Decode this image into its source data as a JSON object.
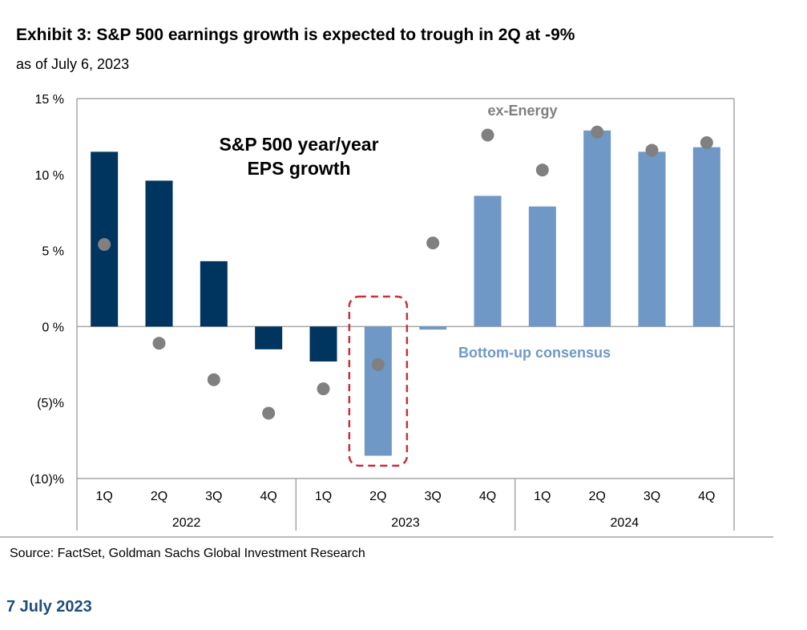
{
  "header": {
    "title": "Exhibit 3: S&P 500 earnings growth is expected to trough in 2Q at -9%",
    "subtitle": "as of July 6, 2023"
  },
  "footer": {
    "source": "Source: FactSet, Goldman Sachs Global Investment Research",
    "date": "7 July 2023"
  },
  "chart_data": {
    "type": "bar",
    "title": "S&P 500 year/year EPS growth",
    "title_lines": [
      "S&P 500 year/year",
      "EPS growth"
    ],
    "ylim": [
      -10,
      15
    ],
    "yticks": [
      15,
      10,
      5,
      0,
      -5,
      -10
    ],
    "ytick_labels": [
      "15 %",
      "10 %",
      "5 %",
      "0 %",
      "(5)%",
      "(10)%"
    ],
    "categories": [
      "1Q",
      "2Q",
      "3Q",
      "4Q",
      "1Q",
      "2Q",
      "3Q",
      "4Q",
      "1Q",
      "2Q",
      "3Q",
      "4Q"
    ],
    "years": [
      "2022",
      "2023",
      "2024"
    ],
    "series": [
      {
        "name": "Bottom-up consensus",
        "type": "bar",
        "values": [
          11.5,
          9.6,
          4.3,
          -1.5,
          -2.3,
          -8.5,
          -0.2,
          8.6,
          7.9,
          12.9,
          11.5,
          11.8
        ],
        "actual_count": 5
      },
      {
        "name": "ex-Energy",
        "type": "scatter",
        "values": [
          5.4,
          -1.1,
          -3.5,
          -5.7,
          -4.1,
          -2.5,
          5.5,
          12.6,
          10.3,
          12.8,
          11.6,
          12.1
        ]
      }
    ],
    "highlight_index": 5,
    "colors": {
      "actual": "#003560",
      "estimate": "#6f98c6",
      "dot": "#808080",
      "highlight": "#c8303a",
      "grid": "#a6a6a6"
    }
  }
}
